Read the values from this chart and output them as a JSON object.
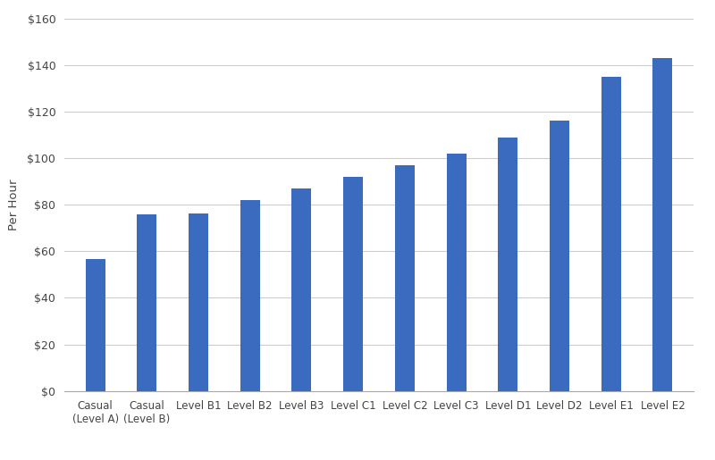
{
  "categories": [
    "Casual\n(Level A)",
    "Casual\n(Level B)",
    "Level B1",
    "Level B2",
    "Level B3",
    "Level C1",
    "Level C2",
    "Level C3",
    "Level D1",
    "Level D2",
    "Level E1",
    "Level E2"
  ],
  "values": [
    56.5,
    76.0,
    76.2,
    82.0,
    87.0,
    92.0,
    97.0,
    102.0,
    109.0,
    116.0,
    135.0,
    143.0
  ],
  "bar_color": "#3A6BBF",
  "ylabel": "Per Hour",
  "ylim": [
    0,
    160
  ],
  "yticks": [
    0,
    20,
    40,
    60,
    80,
    100,
    120,
    140,
    160
  ],
  "background_color": "#ffffff",
  "grid_color": "#cccccc",
  "bar_width": 0.38,
  "figsize": [
    8.0,
    5.15
  ],
  "dpi": 100
}
